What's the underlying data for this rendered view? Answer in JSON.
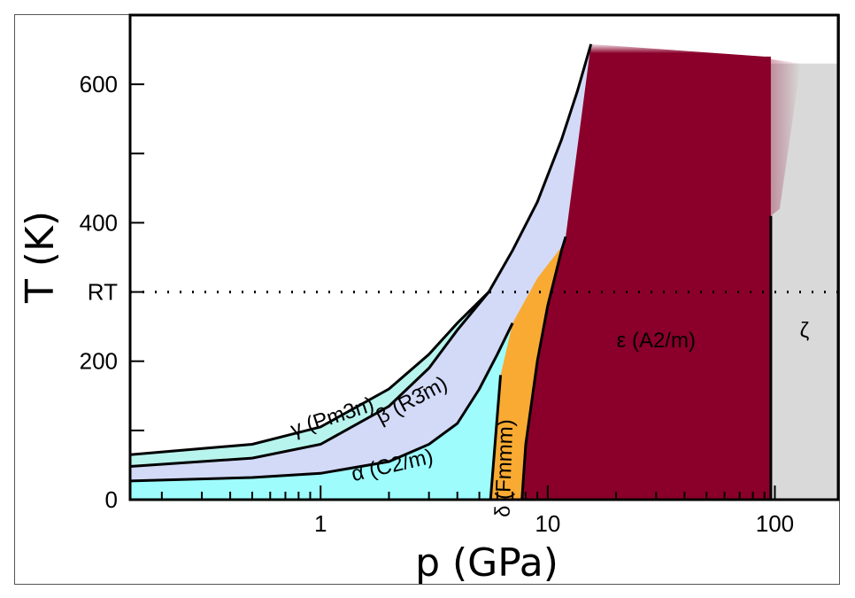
{
  "chart_data": {
    "type": "area",
    "xlabel": "p (GPa)",
    "ylabel": "T (K)",
    "x_scale": "log",
    "xlim": [
      0.145,
      190
    ],
    "ylim": [
      0,
      700
    ],
    "x_ticks": [
      {
        "value": 1,
        "label": "1"
      },
      {
        "value": 10,
        "label": "10"
      },
      {
        "value": 100,
        "label": "100"
      }
    ],
    "y_ticks": [
      {
        "value": 0,
        "label": "0"
      },
      {
        "value": 200,
        "label": "200"
      },
      {
        "value": 400,
        "label": "400"
      },
      {
        "value": 600,
        "label": "600"
      }
    ],
    "y_minor_ticks": [
      100,
      300,
      500
    ],
    "reference_line": {
      "y": 300,
      "label": "RT",
      "style": "dotted"
    },
    "series": [
      {
        "name": "α (C2/m)",
        "color": "#9efcfc",
        "boundary_upper": [
          [
            0.145,
            27
          ],
          [
            0.5,
            32
          ],
          [
            1,
            38
          ],
          [
            2,
            55
          ],
          [
            3,
            80
          ],
          [
            4,
            110
          ],
          [
            5,
            160
          ],
          [
            6,
            210
          ],
          [
            7,
            255
          ]
        ]
      },
      {
        "name": "β (R3̄m)",
        "color": "#d2daf7",
        "boundary_upper": [
          [
            0.145,
            48
          ],
          [
            0.5,
            60
          ],
          [
            1,
            80
          ],
          [
            2,
            135
          ],
          [
            3,
            190
          ],
          [
            4,
            245
          ],
          [
            5.5,
            300
          ],
          [
            7,
            360
          ],
          [
            9,
            430
          ],
          [
            11.5,
            520
          ],
          [
            13.5,
            590
          ],
          [
            15.5,
            658
          ]
        ]
      },
      {
        "name": "γ (Pm3n)",
        "color": "#b8f4ee",
        "boundary_upper": [
          [
            0.145,
            65
          ],
          [
            0.5,
            80
          ],
          [
            1,
            105
          ],
          [
            2,
            160
          ],
          [
            3,
            210
          ],
          [
            4,
            255
          ],
          [
            5.5,
            300
          ]
        ]
      },
      {
        "name": "δ (Fmmm)",
        "color": "#f8aa33",
        "boundary_right": [
          [
            7.7,
            0
          ],
          [
            8,
            80
          ],
          [
            9,
            200
          ],
          [
            10,
            280
          ],
          [
            11.5,
            360
          ],
          [
            12,
            380
          ]
        ]
      },
      {
        "name": "ε (A2/m)",
        "color": "#8a002a",
        "boundary_upper": [
          [
            15.5,
            658
          ],
          [
            90,
            640
          ]
        ],
        "right_boundary_p": 96
      },
      {
        "name": "ζ",
        "color": "#d9d9d9",
        "left_boundary_p": 96,
        "top": 630
      }
    ]
  }
}
